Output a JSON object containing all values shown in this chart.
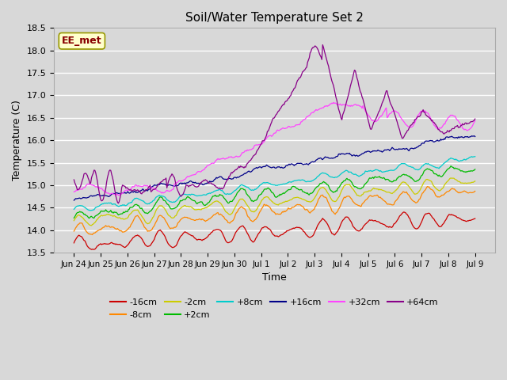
{
  "title": "Soil/Water Temperature Set 2",
  "xlabel": "Time",
  "ylabel": "Temperature (C)",
  "ylim": [
    13.5,
    18.5
  ],
  "background_color": "#d8d8d8",
  "plot_bg_color": "#d8d8d8",
  "annotation_text": "EE_met",
  "annotation_bg": "#ffffcc",
  "annotation_border": "#999900",
  "annotation_text_color": "#880000",
  "series": [
    {
      "label": "-16cm",
      "color": "#cc0000"
    },
    {
      "label": "-8cm",
      "color": "#ff8800"
    },
    {
      "label": "-2cm",
      "color": "#cccc00"
    },
    {
      "label": "+2cm",
      "color": "#00bb00"
    },
    {
      "label": "+8cm",
      "color": "#00cccc"
    },
    {
      "label": "+16cm",
      "color": "#000088"
    },
    {
      "label": "+32cm",
      "color": "#ff44ff"
    },
    {
      "label": "+64cm",
      "color": "#880088"
    }
  ],
  "tick_labels": [
    "Jun 24",
    "Jun 25",
    "Jun 26",
    "Jun 27",
    "Jun 28",
    "Jun 29",
    "Jun 30",
    "Jul 1",
    "Jul 2",
    "Jul 3",
    "Jul 4",
    "Jul 5",
    "Jul 6",
    "Jul 7",
    "Jul 8",
    "Jul 9"
  ],
  "n_points": 480,
  "figwidth": 6.4,
  "figheight": 4.8,
  "dpi": 100
}
